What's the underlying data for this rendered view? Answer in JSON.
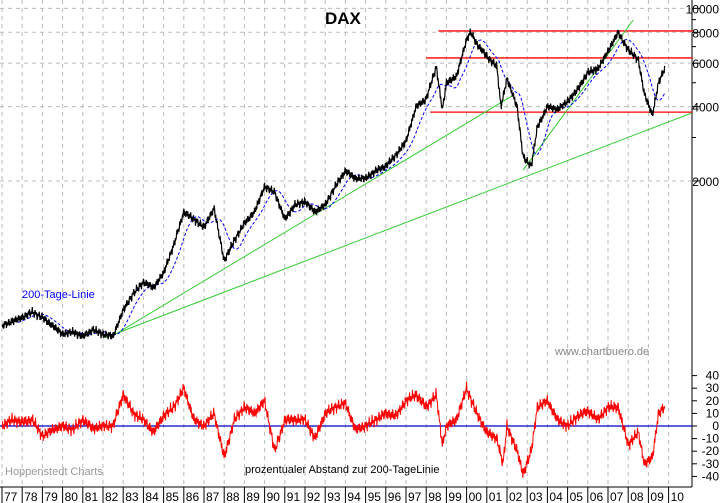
{
  "chart_data": [
    {
      "type": "line",
      "title": "DAX",
      "scale": "log",
      "ylim": [
        400,
        11000
      ],
      "yticks": [
        2000,
        4000,
        6000,
        8000,
        10000
      ],
      "grid": true,
      "xlim": [
        1977,
        2011.2
      ],
      "xtick_labels": [
        "77",
        "78",
        "79",
        "80",
        "81",
        "82",
        "83",
        "84",
        "85",
        "86",
        "87",
        "88",
        "89",
        "90",
        "91",
        "92",
        "93",
        "94",
        "95",
        "96",
        "97",
        "98",
        "99",
        "00",
        "01",
        "02",
        "03",
        "04",
        "05",
        "06",
        "07",
        "08",
        "09",
        "10"
      ],
      "series": [
        {
          "color": "#000000",
          "x": [
            1977,
            1977.5,
            1978,
            1978.5,
            1979,
            1979.5,
            1980,
            1980.5,
            1981,
            1981.5,
            1982,
            1982.5,
            1983,
            1983.5,
            1984,
            1984.5,
            1985,
            1985.5,
            1986,
            1986.5,
            1987,
            1987.5,
            1988,
            1988.5,
            1989,
            1989.5,
            1990,
            1990.5,
            1991,
            1991.5,
            1992,
            1992.5,
            1993,
            1993.5,
            1994,
            1994.5,
            1995,
            1995.5,
            1996,
            1996.5,
            1997,
            1997.5,
            1998,
            1998.5,
            1998.8,
            1999,
            1999.5,
            2000,
            2000.2,
            2000.5,
            2001,
            2001.5,
            2001.7,
            2002,
            2002.5,
            2002.8,
            2003.2,
            2003.5,
            2004,
            2004.5,
            2005,
            2005.5,
            2006,
            2006.5,
            2007,
            2007.5,
            2008,
            2008.5,
            2008.8,
            2009.2,
            2009.5,
            2009.8
          ],
          "y": [
            520,
            540,
            560,
            590,
            560,
            520,
            480,
            490,
            470,
            500,
            480,
            470,
            600,
            700,
            780,
            740,
            850,
            1100,
            1500,
            1400,
            1300,
            1550,
            950,
            1150,
            1350,
            1500,
            1900,
            1800,
            1400,
            1600,
            1650,
            1500,
            1600,
            1900,
            2200,
            2050,
            2050,
            2200,
            2300,
            2550,
            2900,
            4000,
            4300,
            5800,
            3900,
            5000,
            5300,
            7500,
            8000,
            7200,
            6400,
            5800,
            4000,
            5200,
            4000,
            2500,
            2300,
            3300,
            4000,
            3900,
            4200,
            4700,
            5500,
            5700,
            6700,
            8000,
            6800,
            6200,
            4500,
            3700,
            5000,
            5700
          ]
        },
        {
          "name": "200-Tage-Linie",
          "color": "#0000ff",
          "style": "dashed",
          "derived": "200-day moving average"
        }
      ],
      "annotations": {
        "horizontal_lines": [
          {
            "value": 8100,
            "from": 1998.6,
            "to": 2011.2,
            "color": "#ff0000"
          },
          {
            "value": 6300,
            "from": 1998.0,
            "to": 2011.2,
            "color": "#ff0000"
          },
          {
            "value": 3800,
            "from": 1998.2,
            "to": 2011.2,
            "color": "#ff0000"
          }
        ],
        "trend_lines": [
          {
            "x": [
              1982.45,
              2002.25
            ],
            "y": [
              471,
              4420
            ],
            "color": "#33cc33"
          },
          {
            "x": [
              1982.1,
              2011.15
            ],
            "y": [
              464,
              3770
            ],
            "color": "#33cc33"
          },
          {
            "x": [
              2002.8,
              2008.25
            ],
            "y": [
              2215,
              8970
            ],
            "color": "#33cc33"
          }
        ],
        "series_label": "200-Tage-Linie",
        "watermark": "www.chartbuero.de"
      }
    },
    {
      "type": "line",
      "title": "prozentualer Abstand zur 200-TageLinie",
      "ylim": [
        -45,
        45
      ],
      "yticks": [
        40,
        30,
        20,
        10,
        0,
        -10,
        -20,
        -30,
        -40
      ],
      "zero_line_color": "#0000cc",
      "series": [
        {
          "color": "#ff0000",
          "x": [
            1977,
            1977.5,
            1978,
            1978.5,
            1979,
            1979.5,
            1980,
            1980.5,
            1981,
            1981.5,
            1982,
            1982.5,
            1983,
            1983.5,
            1984,
            1984.5,
            1985,
            1985.5,
            1986,
            1986.5,
            1987,
            1987.5,
            1988,
            1988.5,
            1989,
            1989.5,
            1990,
            1990.5,
            1991,
            1991.5,
            1992,
            1992.5,
            1993,
            1993.5,
            1994,
            1994.5,
            1995,
            1995.5,
            1996,
            1996.5,
            1997,
            1997.5,
            1998,
            1998.5,
            1998.8,
            1999,
            1999.5,
            2000,
            2000.5,
            2001,
            2001.5,
            2001.8,
            2002,
            2002.5,
            2002.8,
            2003.2,
            2003.5,
            2004,
            2004.5,
            2005,
            2005.5,
            2006,
            2006.5,
            2007,
            2007.5,
            2008,
            2008.5,
            2008.8,
            2009.2,
            2009.5,
            2009.8
          ],
          "y": [
            0,
            5,
            3,
            5,
            -8,
            -3,
            0,
            -3,
            5,
            -2,
            0,
            0,
            25,
            10,
            5,
            -5,
            8,
            15,
            30,
            5,
            0,
            10,
            -25,
            5,
            15,
            10,
            20,
            -20,
            5,
            5,
            5,
            -10,
            10,
            15,
            18,
            -3,
            0,
            5,
            10,
            8,
            20,
            25,
            15,
            25,
            -15,
            0,
            5,
            30,
            10,
            -5,
            -10,
            -30,
            0,
            -20,
            -38,
            -20,
            15,
            20,
            5,
            0,
            8,
            12,
            5,
            15,
            15,
            -15,
            -5,
            -30,
            -25,
            10,
            15
          ]
        }
      ],
      "source": "Hoppenstedt Charts"
    }
  ]
}
